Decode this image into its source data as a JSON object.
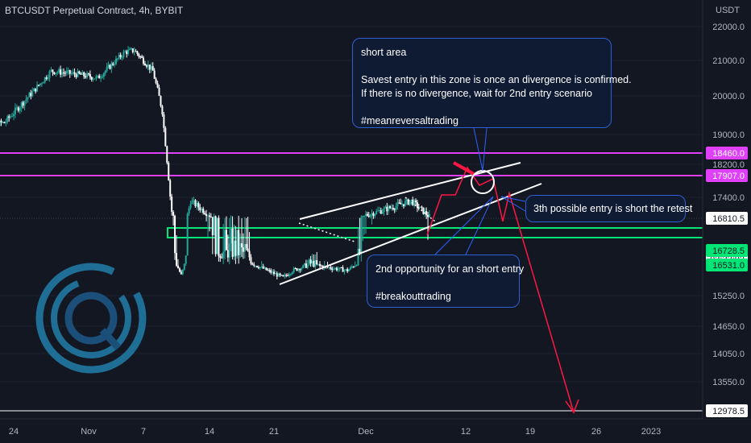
{
  "header": {
    "title": "BTCUSDT Perpetual Contract, 4h, BYBIT"
  },
  "axis": {
    "unit": "USDT",
    "y_ticks": [
      {
        "label": "22000.0",
        "value": 22000
      },
      {
        "label": "21000.0",
        "value": 21000
      },
      {
        "label": "20000.0",
        "value": 20000
      },
      {
        "label": "19000.0",
        "value": 19000
      },
      {
        "label": "18200.0",
        "value": 18200
      },
      {
        "label": "17400.0",
        "value": 17400
      },
      {
        "label": "15250.0",
        "value": 15250
      },
      {
        "label": "14650.0",
        "value": 14650
      },
      {
        "label": "14050.0",
        "value": 14050
      },
      {
        "label": "13550.0",
        "value": 13550
      }
    ],
    "x_ticks": [
      "24",
      "Nov",
      "7",
      "14",
      "21",
      "Dec",
      "12",
      "19",
      "26",
      "2023"
    ]
  },
  "price_tags": [
    {
      "label": "18460.0",
      "value": 18460,
      "bg": "#e040fb",
      "fg": "#ffffff"
    },
    {
      "label": "17907.0",
      "value": 17907,
      "bg": "#e040fb",
      "fg": "#ffffff"
    },
    {
      "label": "16810.5",
      "value": 16810.5,
      "bg": "#ffffff",
      "fg": "#131722"
    },
    {
      "label": "03:33:02",
      "value": 16615,
      "bg": "#ffffff",
      "fg": "#131722"
    },
    {
      "label": "16728.5",
      "value": 16728.5,
      "bg": "#00e676",
      "fg": "#131722"
    },
    {
      "label": "16531.0",
      "value": 16531,
      "bg": "#00e676",
      "fg": "#131722"
    },
    {
      "label": "12978.5",
      "value": 12978.5,
      "bg": "#ffffff",
      "fg": "#131722"
    }
  ],
  "notes": {
    "short_area": {
      "title": "short area",
      "line1": "Savest entry in this zone is once an divergence is confirmed.",
      "line2": "If there is no divergence, wait for 2nd entry scenario",
      "tag": "#meanreversaltrading"
    },
    "second_entry": {
      "line1": "2nd opportunity for an short entry",
      "tag": "#breakouttrading"
    },
    "third_entry": {
      "line1": "3th possible entry is short the retest"
    }
  },
  "colors": {
    "background": "#131722",
    "up": "#26a69a",
    "down": "#ef5350",
    "resistance": "#e040fb",
    "support": "#00e676",
    "projection": "#ff1744",
    "annotation": "#2962ff"
  },
  "chart_data": {
    "type": "candlestick",
    "symbol": "BTCUSDT",
    "timeframe": "4h",
    "exchange": "BYBIT",
    "ylim": [
      12978.5,
      22000
    ],
    "levels": {
      "resistance": [
        18460,
        17907
      ],
      "support_zone": [
        16531,
        16728.5
      ],
      "last_price": 16810.5,
      "projected_target": 12978.5
    },
    "series_points": [
      {
        "x": "Oct 19",
        "y": 19250
      },
      {
        "x": "Oct 22",
        "y": 19300
      },
      {
        "x": "Oct 25",
        "y": 20100
      },
      {
        "x": "Oct 27",
        "y": 20700
      },
      {
        "x": "Oct 30",
        "y": 20600
      },
      {
        "x": "Nov 1",
        "y": 20500
      },
      {
        "x": "Nov 4",
        "y": 21250
      },
      {
        "x": "Nov 5",
        "y": 21300
      },
      {
        "x": "Nov 7",
        "y": 20700
      },
      {
        "x": "Nov 8",
        "y": 19600
      },
      {
        "x": "Nov 9",
        "y": 17000
      },
      {
        "x": "Nov 10",
        "y": 16100
      },
      {
        "x": "Nov 11",
        "y": 17300
      },
      {
        "x": "Nov 14",
        "y": 16700
      },
      {
        "x": "Nov 17",
        "y": 16700
      },
      {
        "x": "Nov 21",
        "y": 16000
      },
      {
        "x": "Nov 22",
        "y": 16300
      },
      {
        "x": "Nov 24",
        "y": 16550
      },
      {
        "x": "Nov 28",
        "y": 16300
      },
      {
        "x": "Nov 30",
        "y": 16900
      },
      {
        "x": "Dec 2",
        "y": 17050
      },
      {
        "x": "Dec 5",
        "y": 17300
      },
      {
        "x": "Dec 7",
        "y": 16850
      }
    ]
  }
}
